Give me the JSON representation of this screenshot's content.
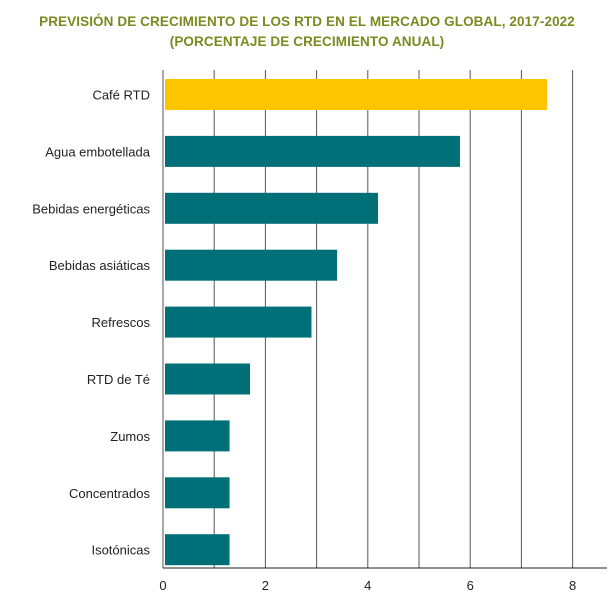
{
  "chart_data": {
    "type": "bar",
    "orientation": "horizontal",
    "title": "PREVISIÓN DE CRECIMIENTO DE LOS RTD EN EL MERCADO GLOBAL, 2017-2022",
    "subtitle": "(PORCENTAJE DE CRECIMIENTO ANUAL)",
    "xlabel": "",
    "ylabel": "",
    "categories": [
      "Café RTD",
      "Agua embotellada",
      "Bebidas energéticas",
      "Bebidas asiáticas",
      "Refrescos",
      "RTD de Té",
      "Zumos",
      "Concentrados",
      "Isotónicas"
    ],
    "values": [
      7.5,
      5.8,
      4.2,
      3.4,
      2.9,
      1.7,
      1.3,
      1.3,
      1.3
    ],
    "xlim": [
      0,
      8.6
    ],
    "xticks": [
      "0",
      "2",
      "4",
      "6",
      "8"
    ],
    "grid": true,
    "highlight_index": 0,
    "colors": {
      "bar": "#007078",
      "highlight": "#fcc500",
      "title": "#7a8a1e",
      "grid": "#555555"
    }
  }
}
